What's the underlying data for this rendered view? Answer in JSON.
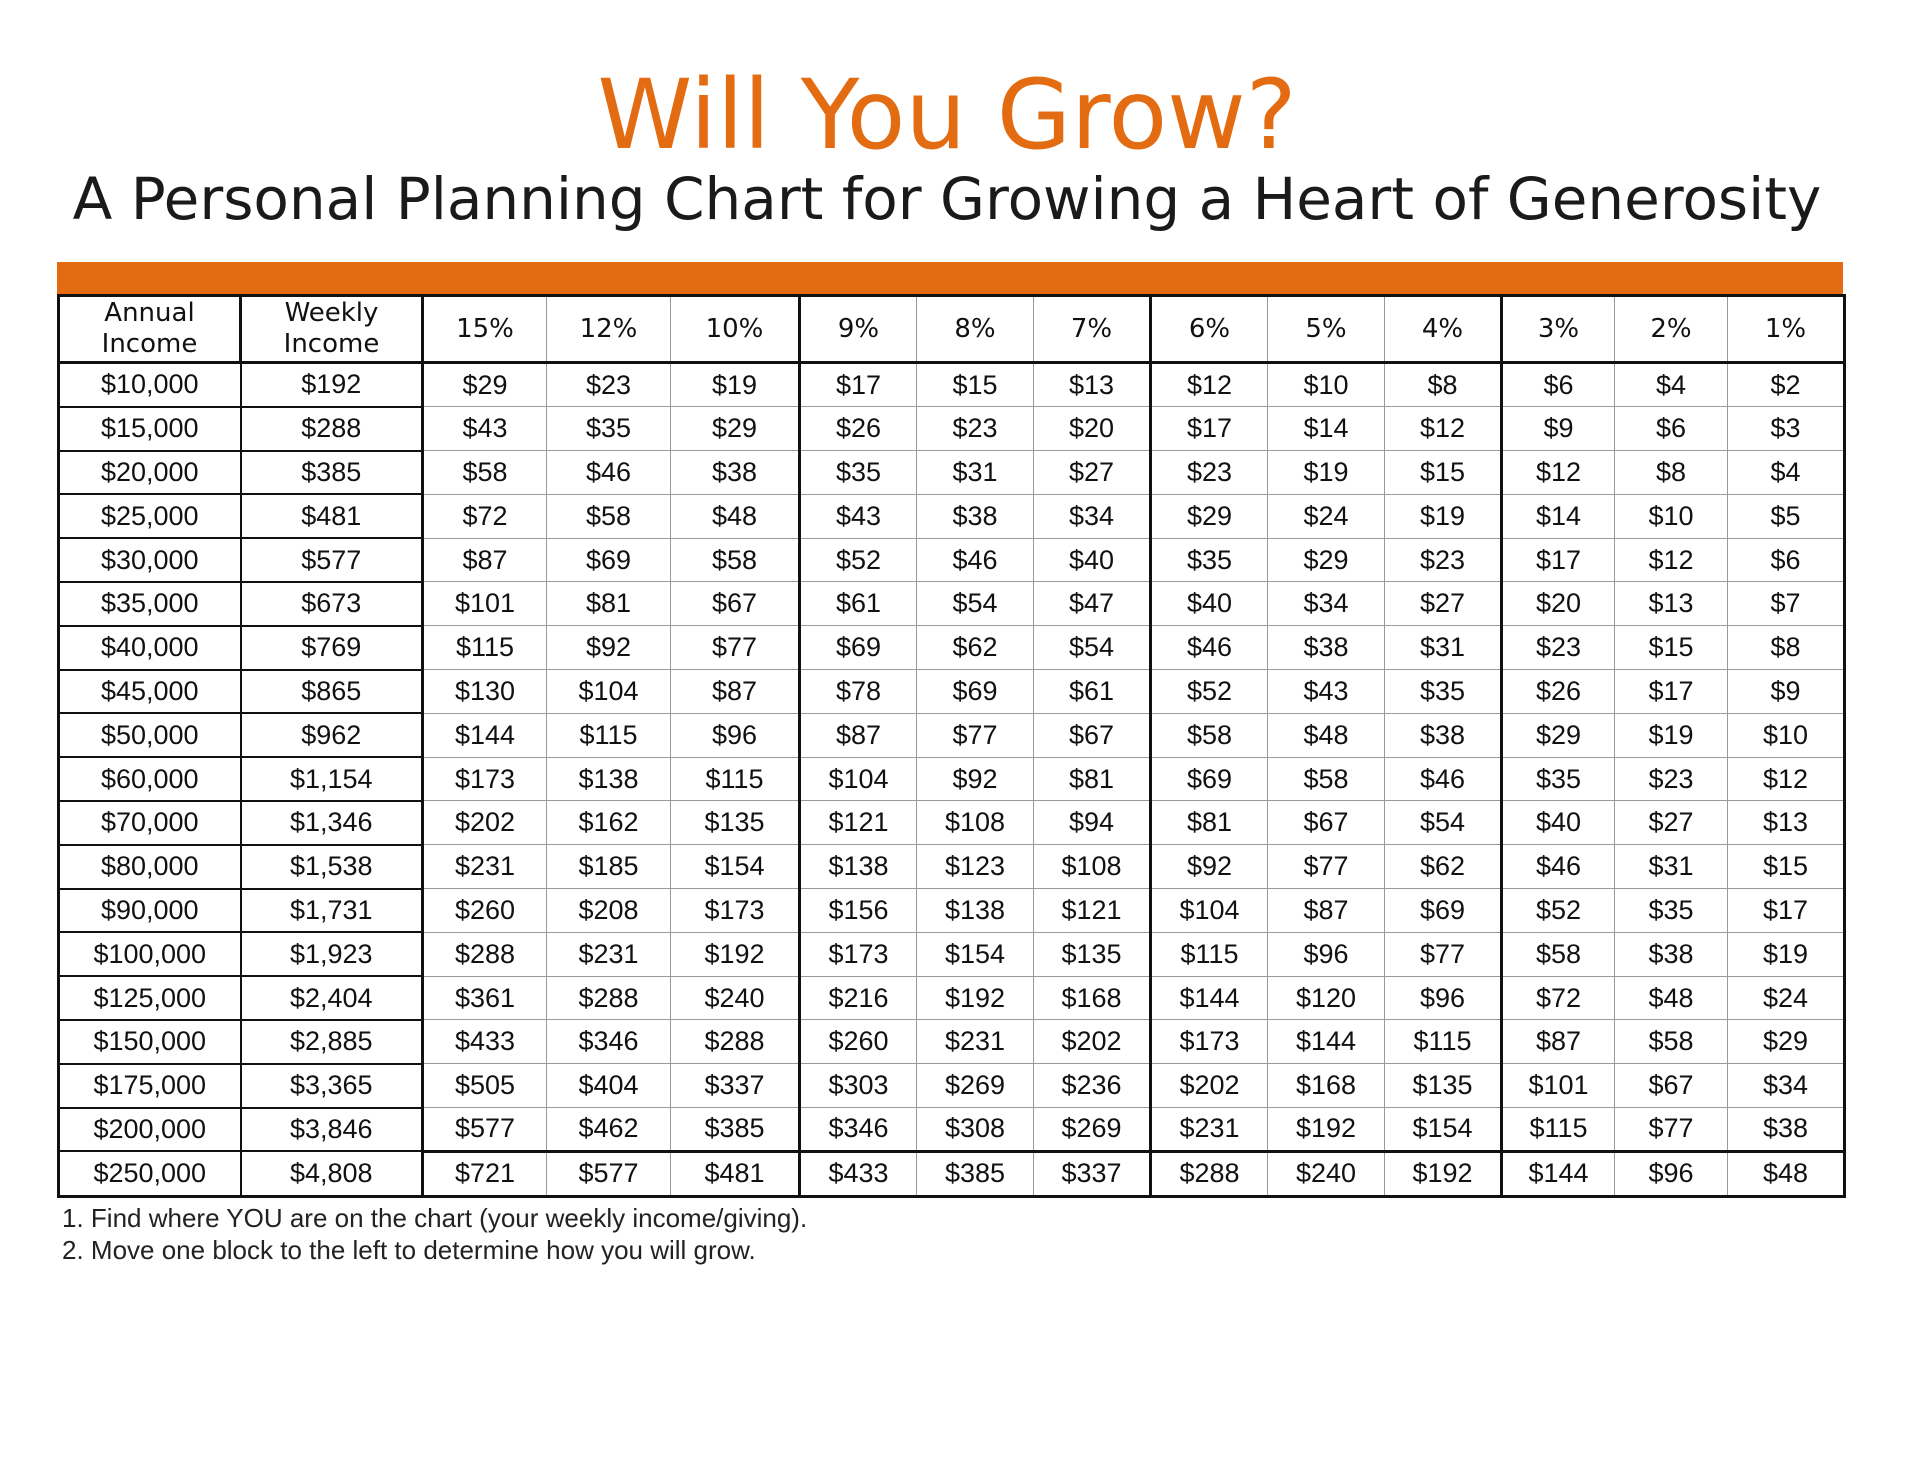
{
  "title": "Will You Grow?",
  "subtitle": "A Personal Planning Chart for Growing a Heart of Generosity",
  "colors": {
    "accent": "#e36c13",
    "border": "#111111"
  },
  "table": {
    "headers": {
      "annual": "Annual Income",
      "weekly": "Weekly Income",
      "percents": [
        "15%",
        "12%",
        "10%",
        "9%",
        "8%",
        "7%",
        "6%",
        "5%",
        "4%",
        "3%",
        "2%",
        "1%"
      ]
    },
    "rows": [
      [
        "$10,000",
        "$192",
        "$29",
        "$23",
        "$19",
        "$17",
        "$15",
        "$13",
        "$12",
        "$10",
        "$8",
        "$6",
        "$4",
        "$2"
      ],
      [
        "$15,000",
        "$288",
        "$43",
        "$35",
        "$29",
        "$26",
        "$23",
        "$20",
        "$17",
        "$14",
        "$12",
        "$9",
        "$6",
        "$3"
      ],
      [
        "$20,000",
        "$385",
        "$58",
        "$46",
        "$38",
        "$35",
        "$31",
        "$27",
        "$23",
        "$19",
        "$15",
        "$12",
        "$8",
        "$4"
      ],
      [
        "$25,000",
        "$481",
        "$72",
        "$58",
        "$48",
        "$43",
        "$38",
        "$34",
        "$29",
        "$24",
        "$19",
        "$14",
        "$10",
        "$5"
      ],
      [
        "$30,000",
        "$577",
        "$87",
        "$69",
        "$58",
        "$52",
        "$46",
        "$40",
        "$35",
        "$29",
        "$23",
        "$17",
        "$12",
        "$6"
      ],
      [
        "$35,000",
        "$673",
        "$101",
        "$81",
        "$67",
        "$61",
        "$54",
        "$47",
        "$40",
        "$34",
        "$27",
        "$20",
        "$13",
        "$7"
      ],
      [
        "$40,000",
        "$769",
        "$115",
        "$92",
        "$77",
        "$69",
        "$62",
        "$54",
        "$46",
        "$38",
        "$31",
        "$23",
        "$15",
        "$8"
      ],
      [
        "$45,000",
        "$865",
        "$130",
        "$104",
        "$87",
        "$78",
        "$69",
        "$61",
        "$52",
        "$43",
        "$35",
        "$26",
        "$17",
        "$9"
      ],
      [
        "$50,000",
        "$962",
        "$144",
        "$115",
        "$96",
        "$87",
        "$77",
        "$67",
        "$58",
        "$48",
        "$38",
        "$29",
        "$19",
        "$10"
      ],
      [
        "$60,000",
        "$1,154",
        "$173",
        "$138",
        "$115",
        "$104",
        "$92",
        "$81",
        "$69",
        "$58",
        "$46",
        "$35",
        "$23",
        "$12"
      ],
      [
        "$70,000",
        "$1,346",
        "$202",
        "$162",
        "$135",
        "$121",
        "$108",
        "$94",
        "$81",
        "$67",
        "$54",
        "$40",
        "$27",
        "$13"
      ],
      [
        "$80,000",
        "$1,538",
        "$231",
        "$185",
        "$154",
        "$138",
        "$123",
        "$108",
        "$92",
        "$77",
        "$62",
        "$46",
        "$31",
        "$15"
      ],
      [
        "$90,000",
        "$1,731",
        "$260",
        "$208",
        "$173",
        "$156",
        "$138",
        "$121",
        "$104",
        "$87",
        "$69",
        "$52",
        "$35",
        "$17"
      ],
      [
        "$100,000",
        "$1,923",
        "$288",
        "$231",
        "$192",
        "$173",
        "$154",
        "$135",
        "$115",
        "$96",
        "$77",
        "$58",
        "$38",
        "$19"
      ],
      [
        "$125,000",
        "$2,404",
        "$361",
        "$288",
        "$240",
        "$216",
        "$192",
        "$168",
        "$144",
        "$120",
        "$96",
        "$72",
        "$48",
        "$24"
      ],
      [
        "$150,000",
        "$2,885",
        "$433",
        "$346",
        "$288",
        "$260",
        "$231",
        "$202",
        "$173",
        "$144",
        "$115",
        "$87",
        "$58",
        "$29"
      ],
      [
        "$175,000",
        "$3,365",
        "$505",
        "$404",
        "$337",
        "$303",
        "$269",
        "$236",
        "$202",
        "$168",
        "$135",
        "$101",
        "$67",
        "$34"
      ],
      [
        "$200,000",
        "$3,846",
        "$577",
        "$462",
        "$385",
        "$346",
        "$308",
        "$269",
        "$231",
        "$192",
        "$154",
        "$115",
        "$77",
        "$38"
      ],
      [
        "$250,000",
        "$4,808",
        "$721",
        "$577",
        "$481",
        "$433",
        "$385",
        "$337",
        "$288",
        "$240",
        "$192",
        "$144",
        "$96",
        "$48"
      ]
    ]
  },
  "instructions": [
    "1. Find where YOU are on the chart (your weekly income/giving).",
    "2. Move one block to the left to determine how you will grow."
  ]
}
